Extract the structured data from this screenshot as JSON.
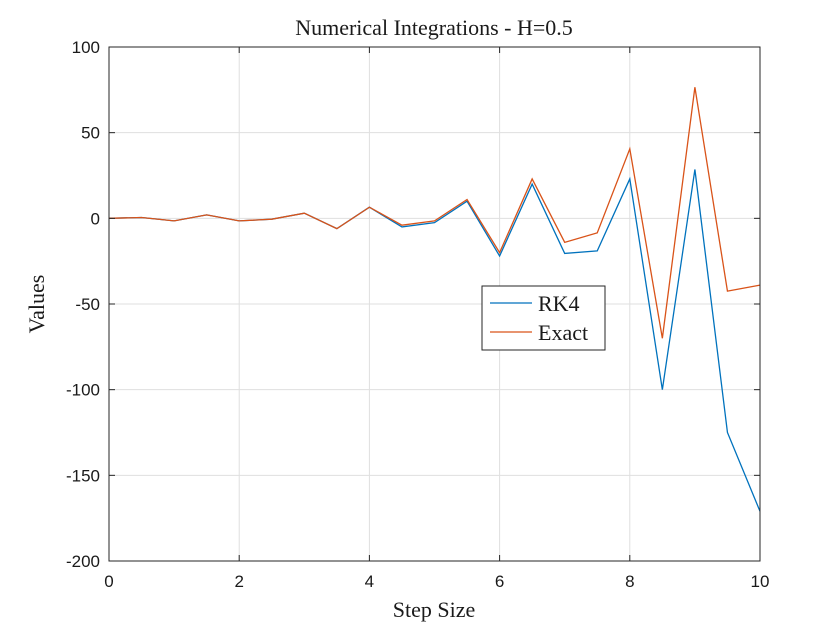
{
  "chart_data": {
    "type": "line",
    "title": "Numerical Integrations - H=0.5",
    "xlabel": "Step Size",
    "ylabel": "Values",
    "xlim": [
      0,
      10
    ],
    "ylim": [
      -200,
      100
    ],
    "x_ticks": [
      0,
      2,
      4,
      6,
      8,
      10
    ],
    "y_ticks": [
      100,
      50,
      0,
      -50,
      -100,
      -150,
      -200
    ],
    "grid": true,
    "legend_position": "center-right",
    "x": [
      0,
      0.5,
      1,
      1.5,
      2,
      2.5,
      3,
      3.5,
      4,
      4.5,
      5,
      5.5,
      6,
      6.5,
      7,
      7.5,
      8,
      8.5,
      9,
      9.5,
      10
    ],
    "series": [
      {
        "name": "RK4",
        "color": "#0072BD",
        "values": [
          0,
          0.5,
          -1.5,
          2,
          -1.5,
          -0.5,
          3,
          -6,
          6.5,
          -5,
          -2.5,
          10,
          -22,
          20,
          -20.5,
          -19,
          23,
          -100,
          28.5,
          -125,
          -171
        ]
      },
      {
        "name": "Exact",
        "color": "#D95319",
        "values": [
          0,
          0.5,
          -1.5,
          2,
          -1.5,
          -0.5,
          3,
          -6,
          6.5,
          -4,
          -1.5,
          11,
          -20,
          23,
          -14,
          -8.5,
          40.5,
          -70,
          76.5,
          -42.5,
          -39
        ]
      }
    ]
  }
}
